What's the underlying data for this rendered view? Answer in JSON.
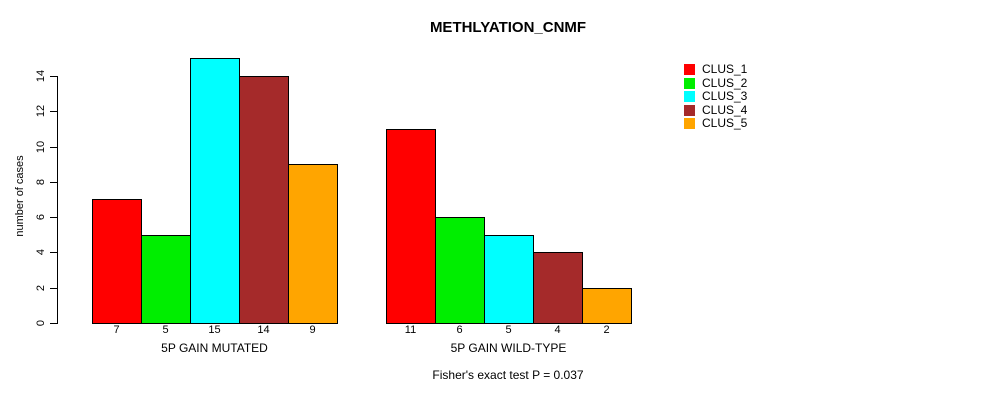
{
  "title": "METHLYATION_CNMF",
  "chart_data": {
    "type": "bar",
    "title": "METHLYATION_CNMF",
    "ylabel": "number of cases",
    "xlabel": "",
    "ylim": [
      0,
      14
    ],
    "yticks": [
      0,
      2,
      4,
      6,
      8,
      10,
      12,
      14
    ],
    "grid": false,
    "legend_position": "right",
    "series_names": [
      "CLUS_1",
      "CLUS_2",
      "CLUS_3",
      "CLUS_4",
      "CLUS_5"
    ],
    "series_colors": [
      "#FF0000",
      "#00EE00",
      "#00FFFF",
      "#A52A2A",
      "#FFA500"
    ],
    "groups": [
      {
        "label": "5P GAIN MUTATED",
        "values": [
          7,
          5,
          15,
          14,
          9
        ]
      },
      {
        "label": "5P GAIN WILD-TYPE",
        "values": [
          11,
          6,
          5,
          4,
          2
        ]
      }
    ],
    "annotation": "Fisher's exact test P = 0.037"
  }
}
